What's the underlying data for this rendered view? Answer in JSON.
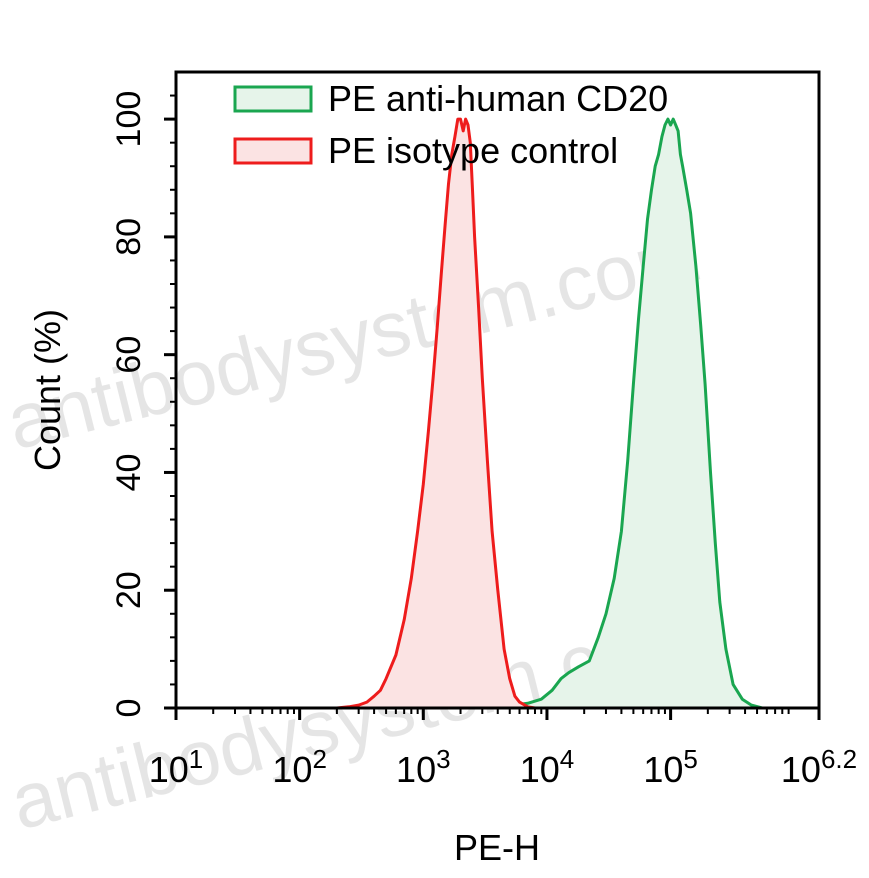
{
  "watermark": "antibodysystem.com",
  "colors": {
    "cd20_line": "#1aa650",
    "cd20_fill": "#e6f4ea",
    "isotype_line": "#ee1c1c",
    "isotype_fill": "#fbe3e3",
    "axis": "#000000"
  },
  "chart_data": {
    "type": "area",
    "xlabel": "PE-H",
    "ylabel": "Count  (%)",
    "x_scale": "log",
    "xlim": [
      10,
      1584893
    ],
    "ylim": [
      0,
      108
    ],
    "x_ticks": [
      {
        "value": 10,
        "base": "10",
        "exp": "1"
      },
      {
        "value": 100,
        "base": "10",
        "exp": "2"
      },
      {
        "value": 1000,
        "base": "10",
        "exp": "3"
      },
      {
        "value": 10000,
        "base": "10",
        "exp": "4"
      },
      {
        "value": 100000,
        "base": "10",
        "exp": "5"
      },
      {
        "value": 1584893,
        "base": "10",
        "exp": "6.2"
      }
    ],
    "y_ticks": [
      "0",
      "20",
      "40",
      "60",
      "80",
      "100"
    ],
    "legend_position": "top",
    "grid": false,
    "series": [
      {
        "name": "PE anti-human CD20",
        "color": "#1aa650",
        "fill": "#e6f4ea",
        "points": [
          [
            1000,
            0
          ],
          [
            2000,
            0.1
          ],
          [
            5000,
            0.4
          ],
          [
            7000,
            0.8
          ],
          [
            9000,
            1.5
          ],
          [
            11000,
            3
          ],
          [
            13000,
            5
          ],
          [
            15000,
            6
          ],
          [
            18000,
            7
          ],
          [
            22000,
            8
          ],
          [
            26000,
            12
          ],
          [
            30000,
            16
          ],
          [
            35000,
            22
          ],
          [
            40000,
            30
          ],
          [
            45000,
            42
          ],
          [
            50000,
            55
          ],
          [
            55000,
            66
          ],
          [
            60000,
            75
          ],
          [
            65000,
            83
          ],
          [
            70000,
            88
          ],
          [
            75000,
            92
          ],
          [
            80000,
            94
          ],
          [
            85000,
            97
          ],
          [
            90000,
            99
          ],
          [
            95000,
            100
          ],
          [
            100000,
            99
          ],
          [
            105000,
            100
          ],
          [
            110000,
            99
          ],
          [
            115000,
            98
          ],
          [
            120000,
            94
          ],
          [
            125000,
            92
          ],
          [
            135000,
            88
          ],
          [
            145000,
            84
          ],
          [
            160000,
            75
          ],
          [
            175000,
            65
          ],
          [
            190000,
            55
          ],
          [
            210000,
            40
          ],
          [
            230000,
            28
          ],
          [
            250000,
            18
          ],
          [
            280000,
            10
          ],
          [
            320000,
            4
          ],
          [
            380000,
            1.5
          ],
          [
            450000,
            0.5
          ],
          [
            550000,
            0
          ]
        ]
      },
      {
        "name": "PE isotype control",
        "color": "#ee1c1c",
        "fill": "#fbe3e3",
        "points": [
          [
            200,
            0
          ],
          [
            250,
            0.2
          ],
          [
            300,
            0.5
          ],
          [
            350,
            1
          ],
          [
            400,
            2
          ],
          [
            450,
            3
          ],
          [
            500,
            5
          ],
          [
            600,
            9
          ],
          [
            700,
            15
          ],
          [
            800,
            22
          ],
          [
            900,
            30
          ],
          [
            1000,
            38
          ],
          [
            1100,
            47
          ],
          [
            1200,
            56
          ],
          [
            1300,
            65
          ],
          [
            1400,
            74
          ],
          [
            1500,
            82
          ],
          [
            1600,
            89
          ],
          [
            1700,
            94
          ],
          [
            1800,
            97
          ],
          [
            1900,
            100
          ],
          [
            2000,
            100
          ],
          [
            2100,
            98
          ],
          [
            2200,
            100
          ],
          [
            2300,
            99
          ],
          [
            2400,
            96
          ],
          [
            2500,
            88
          ],
          [
            2600,
            80
          ],
          [
            2800,
            68
          ],
          [
            3000,
            56
          ],
          [
            3300,
            42
          ],
          [
            3600,
            30
          ],
          [
            4000,
            20
          ],
          [
            4500,
            10
          ],
          [
            5000,
            5
          ],
          [
            5500,
            2
          ],
          [
            6000,
            1
          ],
          [
            7000,
            0.2
          ],
          [
            8000,
            0
          ]
        ]
      }
    ]
  }
}
